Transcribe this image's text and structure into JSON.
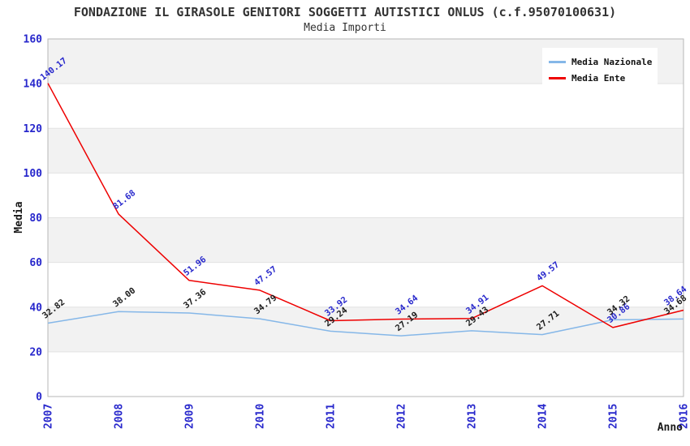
{
  "header": {
    "title": "FONDAZIONE IL GIRASOLE GENITORI SOGGETTI AUTISTICI ONLUS (c.f.95070100631)",
    "subtitle": "Media Importi"
  },
  "legend": [
    {
      "label": "Media Nazionale",
      "color": "#85b7e8"
    },
    {
      "label": "Media Ente",
      "color": "#ee0000"
    }
  ],
  "axes": {
    "y_label": "Media",
    "x_label": "Anno",
    "y_ticks": [
      0,
      20,
      40,
      60,
      80,
      100,
      120,
      140,
      160
    ],
    "tick_color": "#2828cc",
    "axis_title_color": "#1a1a1a"
  },
  "chart_data": {
    "type": "line",
    "title": "Media Importi",
    "xlabel": "Anno",
    "ylabel": "Media",
    "ylim": [
      0,
      160
    ],
    "grid": true,
    "legend_position": "top-right",
    "categories": [
      "2007",
      "2008",
      "2009",
      "2010",
      "2011",
      "2012",
      "2013",
      "2014",
      "2015",
      "2016"
    ],
    "series": [
      {
        "name": "Media Nazionale",
        "color": "#85b7e8",
        "label_color": "#1a1a1a",
        "values": [
          32.82,
          38.0,
          37.36,
          34.79,
          29.24,
          27.19,
          29.43,
          27.71,
          34.32,
          34.68
        ]
      },
      {
        "name": "Media Ente",
        "color": "#ee0000",
        "label_color": "#2828cc",
        "values": [
          140.17,
          81.68,
          51.96,
          47.57,
          33.92,
          34.64,
          34.91,
          49.57,
          30.86,
          38.64
        ]
      }
    ],
    "style": {
      "band_color": "#f2f2f2",
      "grid_line_color": "#e2e2e2",
      "border_color": "#b7b7b7"
    }
  }
}
